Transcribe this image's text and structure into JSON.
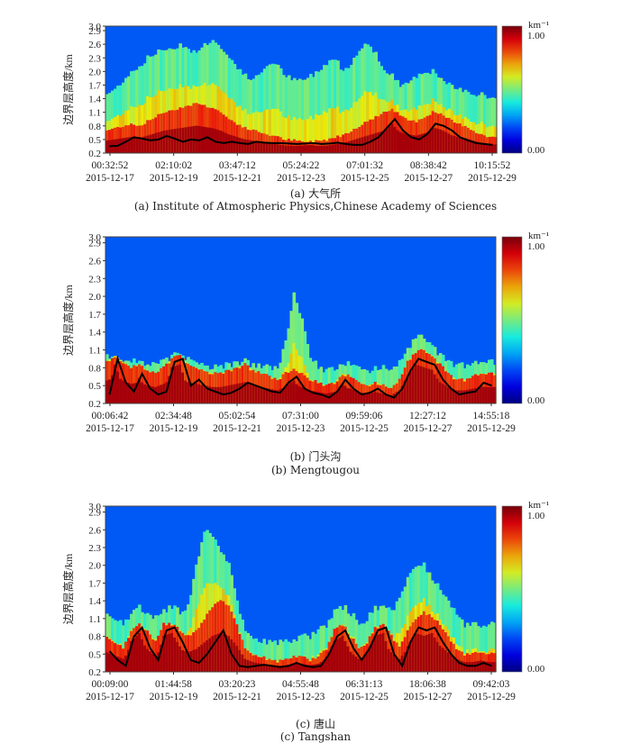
{
  "chart_data": [
    {
      "type": "heatmap",
      "ylabel": "边界层高度/km",
      "yticks": [
        "3.0",
        "2.9",
        "2.6",
        "2.3",
        "2.0",
        "1.7",
        "1.4",
        "1.1",
        "0.8",
        "0.5",
        "0.2"
      ],
      "ylim": [
        0.2,
        3.0
      ],
      "x_times": [
        "00:32:52",
        "02:10:02",
        "03:47:12",
        "05:24:22",
        "07:01:32",
        "08:38:42",
        "10:15:52"
      ],
      "x_dates": [
        "2015-12-17",
        "2015-12-19",
        "2015-12-21",
        "2015-12-23",
        "2015-12-25",
        "2015-12-27",
        "2015-12-29"
      ],
      "colorbar": {
        "unit": "km⁻¹",
        "max_label": "1.00",
        "min_label": "0.00",
        "range": [
          0.0,
          1.0
        ]
      },
      "caption_cn": "(a) 大气所",
      "caption_en": "(a) Institute of Atmospheric Physics,Chinese Academy of Sciences",
      "blh_km": [
        0.35,
        0.36,
        0.45,
        0.55,
        0.52,
        0.48,
        0.5,
        0.58,
        0.52,
        0.45,
        0.5,
        0.48,
        0.55,
        0.45,
        0.42,
        0.45,
        0.42,
        0.4,
        0.45,
        0.43,
        0.42,
        0.42,
        0.41,
        0.4,
        0.41,
        0.42,
        0.4,
        0.41,
        0.43,
        0.4,
        0.38,
        0.38,
        0.45,
        0.55,
        0.75,
        0.95,
        0.7,
        0.55,
        0.5,
        0.62,
        0.85,
        0.8,
        0.7,
        0.55,
        0.48,
        0.42,
        0.4,
        0.38
      ],
      "aerosol_top_km": [
        0.7,
        0.75,
        0.8,
        0.85,
        0.8,
        0.9,
        1.0,
        1.1,
        1.15,
        1.2,
        1.25,
        1.3,
        1.25,
        1.2,
        1.1,
        0.95,
        0.85,
        0.75,
        0.7,
        0.65,
        0.6,
        0.55,
        0.5,
        0.48,
        0.45,
        0.45,
        0.48,
        0.5,
        0.55,
        0.6,
        0.7,
        0.8,
        0.9,
        1.0,
        1.1,
        1.15,
        1.05,
        0.95,
        0.9,
        1.0,
        1.1,
        1.05,
        0.95,
        0.85,
        0.8,
        0.7,
        0.6,
        0.55
      ],
      "mixing_top_km": [
        1.5,
        1.6,
        1.8,
        2.0,
        2.1,
        2.3,
        2.4,
        2.5,
        2.5,
        2.6,
        2.5,
        2.4,
        2.6,
        2.7,
        2.5,
        2.3,
        2.1,
        1.9,
        1.8,
        2.0,
        2.2,
        2.1,
        1.9,
        1.8,
        1.8,
        1.9,
        2.0,
        2.2,
        2.3,
        2.0,
        2.2,
        2.5,
        2.6,
        2.4,
        2.0,
        1.9,
        1.7,
        1.8,
        1.9,
        2.0,
        2.0,
        1.8,
        1.7,
        1.6,
        1.6,
        1.5,
        1.5,
        1.4
      ]
    },
    {
      "type": "heatmap",
      "ylabel": "边界层高度/km",
      "yticks": [
        "3.0",
        "2.9",
        "2.6",
        "2.3",
        "2.0",
        "1.7",
        "1.4",
        "1.1",
        "0.8",
        "0.5",
        "0.2"
      ],
      "ylim": [
        0.2,
        3.0
      ],
      "x_times": [
        "00:06:42",
        "02:34:48",
        "05:02:54",
        "07:31:00",
        "09:59:06",
        "12:27:12",
        "14:55:18"
      ],
      "x_dates": [
        "2015-12-17",
        "2015-12-19",
        "2015-12-21",
        "2015-12-23",
        "2015-12-25",
        "2015-12-27",
        "2015-12-29"
      ],
      "colorbar": {
        "unit": "km⁻¹",
        "max_label": "1.00",
        "min_label": "0.00",
        "range": [
          0.0,
          1.0
        ]
      },
      "caption_cn": "(b) 门头沟",
      "caption_en": "(b) Mengtougou",
      "blh_km": [
        0.35,
        0.95,
        0.55,
        0.4,
        0.7,
        0.45,
        0.35,
        0.4,
        0.9,
        0.95,
        0.5,
        0.6,
        0.45,
        0.4,
        0.35,
        0.38,
        0.45,
        0.55,
        0.5,
        0.45,
        0.4,
        0.38,
        0.55,
        0.65,
        0.45,
        0.38,
        0.35,
        0.3,
        0.4,
        0.6,
        0.45,
        0.35,
        0.38,
        0.45,
        0.35,
        0.3,
        0.45,
        0.75,
        0.95,
        0.9,
        0.85,
        0.6,
        0.45,
        0.35,
        0.38,
        0.4,
        0.55,
        0.5
      ],
      "aerosol_top_km": [
        0.9,
        1.0,
        0.9,
        0.8,
        0.85,
        0.75,
        0.7,
        0.8,
        0.95,
        1.0,
        0.85,
        0.8,
        0.75,
        0.7,
        0.7,
        0.75,
        0.8,
        0.85,
        0.75,
        0.7,
        0.65,
        0.6,
        0.7,
        0.8,
        0.7,
        0.6,
        0.55,
        0.5,
        0.55,
        0.7,
        0.65,
        0.55,
        0.5,
        0.55,
        0.5,
        0.45,
        0.6,
        0.9,
        1.05,
        1.1,
        1.0,
        0.85,
        0.7,
        0.6,
        0.6,
        0.65,
        0.7,
        0.7
      ],
      "mixing_top_km": [
        1.0,
        1.0,
        0.95,
        0.9,
        0.9,
        0.85,
        0.85,
        0.9,
        1.0,
        1.0,
        0.95,
        0.9,
        0.85,
        0.8,
        0.8,
        0.85,
        0.9,
        0.9,
        0.85,
        0.8,
        0.8,
        0.8,
        1.2,
        2.1,
        1.6,
        1.0,
        0.8,
        0.75,
        0.8,
        0.9,
        0.85,
        0.8,
        0.75,
        0.8,
        0.8,
        0.75,
        0.9,
        1.1,
        1.3,
        1.3,
        1.2,
        1.0,
        0.9,
        0.85,
        0.85,
        0.85,
        0.9,
        0.9
      ]
    },
    {
      "type": "heatmap",
      "ylabel": "边界层高度/km",
      "yticks": [
        "3.0",
        "2.9",
        "2.6",
        "2.3",
        "2.0",
        "1.7",
        "1.4",
        "1.1",
        "0.8",
        "0.5",
        "0.2"
      ],
      "ylim": [
        0.2,
        3.0
      ],
      "x_times": [
        "00:09:00",
        "01:44:58",
        "03:20:23",
        "04:55:48",
        "06:31:13",
        "18:06:38",
        "09:42:03"
      ],
      "x_dates": [
        "2015-12-17",
        "2015-12-19",
        "2015-12-21",
        "2015-12-23",
        "2015-12-25",
        "2015-12-27",
        "2015-12-29"
      ],
      "colorbar": {
        "unit": "km⁻¹",
        "max_label": "1.00",
        "min_label": "0.00",
        "range": [
          0.0,
          1.0
        ]
      },
      "caption_cn": "(c) 唐山",
      "caption_en": "(c) Tangshan",
      "blh_km": [
        0.55,
        0.4,
        0.3,
        0.8,
        0.95,
        0.6,
        0.4,
        0.9,
        0.95,
        0.7,
        0.4,
        0.35,
        0.5,
        0.7,
        0.9,
        0.5,
        0.3,
        0.28,
        0.3,
        0.32,
        0.3,
        0.28,
        0.3,
        0.35,
        0.3,
        0.28,
        0.3,
        0.5,
        0.8,
        0.9,
        0.6,
        0.4,
        0.6,
        0.9,
        0.95,
        0.5,
        0.3,
        0.7,
        0.95,
        0.9,
        0.95,
        0.7,
        0.5,
        0.35,
        0.3,
        0.3,
        0.35,
        0.3
      ],
      "aerosol_top_km": [
        0.8,
        0.7,
        0.6,
        0.9,
        1.0,
        0.9,
        0.7,
        1.0,
        1.0,
        0.9,
        0.8,
        0.9,
        1.1,
        1.3,
        1.4,
        1.3,
        1.0,
        0.6,
        0.5,
        0.45,
        0.4,
        0.38,
        0.4,
        0.45,
        0.45,
        0.4,
        0.45,
        0.6,
        0.9,
        1.0,
        0.8,
        0.6,
        0.7,
        0.95,
        1.0,
        0.8,
        0.6,
        0.9,
        1.1,
        1.2,
        1.15,
        1.0,
        0.8,
        0.6,
        0.5,
        0.5,
        0.55,
        0.5
      ],
      "mixing_top_km": [
        1.2,
        1.1,
        1.0,
        1.2,
        1.3,
        1.2,
        1.1,
        1.2,
        1.3,
        1.2,
        1.3,
        2.0,
        2.6,
        2.5,
        2.2,
        2.0,
        1.4,
        0.9,
        0.8,
        0.7,
        0.7,
        0.7,
        0.7,
        0.7,
        0.8,
        0.8,
        0.9,
        1.0,
        1.2,
        1.3,
        1.2,
        1.0,
        1.1,
        1.3,
        1.3,
        1.2,
        1.4,
        1.8,
        2.0,
        2.0,
        1.8,
        1.6,
        1.4,
        1.2,
        1.0,
        1.0,
        1.0,
        1.0
      ]
    }
  ]
}
